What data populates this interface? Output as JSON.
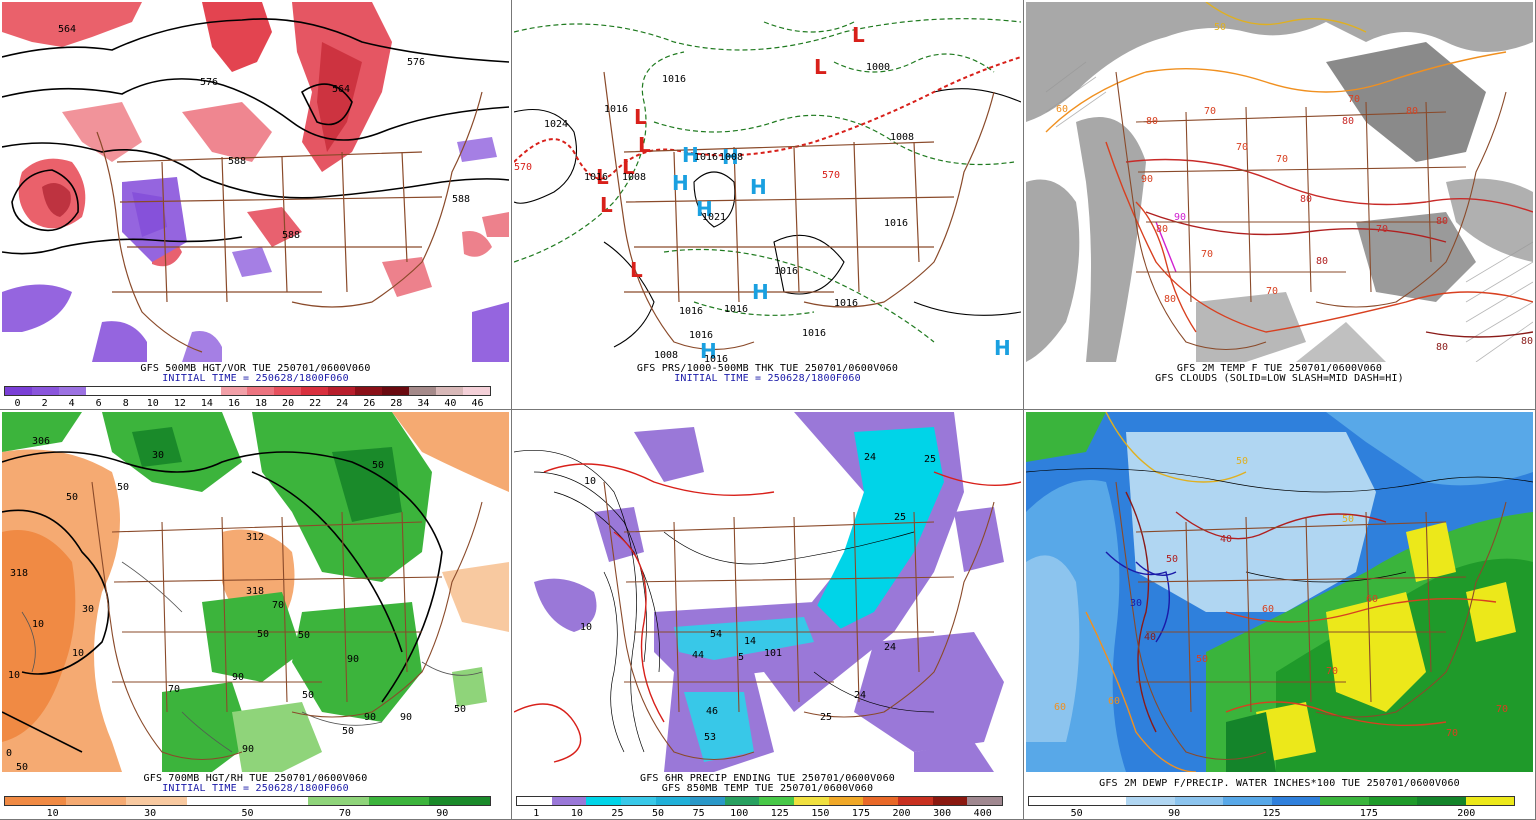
{
  "panels": {
    "p1": {
      "caption_line1": "GFS 500MB HGT/VOR TUE 250701/0600V060",
      "caption_line2": "INITIAL TIME = 250628/1800F060",
      "contour_labels": [
        "564",
        "576",
        "588",
        "564",
        "576",
        "588",
        "588"
      ],
      "colorbar": {
        "colors": [
          "#7a3fd6",
          "#8a55dc",
          "#9c72e2",
          "#ffffff",
          "#ffffff",
          "#ffffff",
          "#ffffff",
          "#ffffff",
          "#f2a0a8",
          "#ec7480",
          "#e6505e",
          "#d8303e",
          "#b81e2c",
          "#8a1018",
          "#6a0a10",
          "#a58a8a",
          "#d8b8b8",
          "#f4d0d8"
        ],
        "labels": [
          "0",
          "2",
          "4",
          "6",
          "8",
          "10",
          "12",
          "14",
          "16",
          "18",
          "20",
          "22",
          "24",
          "26",
          "28",
          "34",
          "40",
          "46"
        ]
      }
    },
    "p2": {
      "caption_line1": "GFS PRS/1000-500MB THK TUE 250701/0600V060",
      "caption_line2": "INITIAL TIME = 250628/1800F060",
      "isobar_labels": [
        "1016",
        "1016",
        "1024",
        "1016",
        "1008",
        "1016",
        "1008",
        "1021",
        "1016",
        "1016",
        "1016",
        "1016",
        "1016",
        "1008",
        "1016",
        "1000",
        "1008",
        "1016",
        "1016"
      ],
      "thickness_labels": [
        "570",
        "570"
      ],
      "low_marker": "L",
      "high_marker": "H"
    },
    "p3": {
      "caption_line1": "GFS 2M TEMP F TUE 250701/0600V060",
      "caption_line2": "GFS CLOUDS (SOLID=LOW SLASH=MID DASH=HI)",
      "temp_labels": [
        "50",
        "60",
        "70",
        "80",
        "70",
        "80",
        "90",
        "80",
        "80",
        "70",
        "70",
        "80",
        "90",
        "70",
        "80",
        "70",
        "80",
        "70",
        "80",
        "80",
        "80"
      ]
    },
    "p4": {
      "caption_line1": "GFS 700MB HGT/RH TUE 250701/0600V060",
      "caption_line2": "INITIAL TIME = 250628/1800F060",
      "contour_labels": [
        "306",
        "318",
        "312",
        "318",
        "50",
        "50",
        "10",
        "30",
        "10",
        "50",
        "90",
        "50",
        "90",
        "30",
        "70",
        "50",
        "90",
        "50",
        "90",
        "50",
        "70",
        "90",
        "50",
        "10",
        "0",
        "50"
      ],
      "colorbar": {
        "colors": [
          "#f08a44",
          "#f5aa72",
          "#f8c9a0",
          "#ffffff",
          "#ffffff",
          "#8fd47a",
          "#3cb43c",
          "#1a8a2a"
        ],
        "labels": [
          "10",
          "30",
          "50",
          "70",
          "90"
        ]
      }
    },
    "p5": {
      "caption_line1": "GFS 6HR PRECIP ENDING TUE 250701/0600V060",
      "caption_line2": "GFS 850MB TEMP TUE 250701/0600V060",
      "contour_labels": [
        "24",
        "24",
        "25",
        "25",
        "10",
        "54",
        "14",
        "101",
        "24",
        "25",
        "46",
        "53",
        "44",
        "5",
        "10"
      ],
      "colorbar": {
        "colors": [
          "#ffffff",
          "#9a78d8",
          "#00d4e8",
          "#38c8e8",
          "#20b0d8",
          "#2a98c8",
          "#28a060",
          "#48c848",
          "#f0e040",
          "#f0a828",
          "#e86828",
          "#c83020",
          "#8a1810",
          "#a08890"
        ],
        "labels": [
          "1",
          "10",
          "25",
          "50",
          "75",
          "100",
          "125",
          "150",
          "175",
          "200",
          "300",
          "400"
        ]
      }
    },
    "p6": {
      "caption_line1": "GFS 2M DEWP F/PRECIP. WATER INCHES*100 TUE 250701/0600V060",
      "temp_labels": [
        "30",
        "40",
        "50",
        "60",
        "50",
        "40",
        "60",
        "50",
        "60",
        "50",
        "70",
        "60",
        "70",
        "70"
      ],
      "colorbar": {
        "colors": [
          "#ffffff",
          "#ffffff",
          "#b0d6f2",
          "#8cc4ee",
          "#58a8e8",
          "#2f80dc",
          "#3ab43c",
          "#1f9a2a",
          "#14842a",
          "#ece81a"
        ],
        "labels": [
          "50",
          "90",
          "125",
          "175",
          "200"
        ]
      }
    }
  }
}
